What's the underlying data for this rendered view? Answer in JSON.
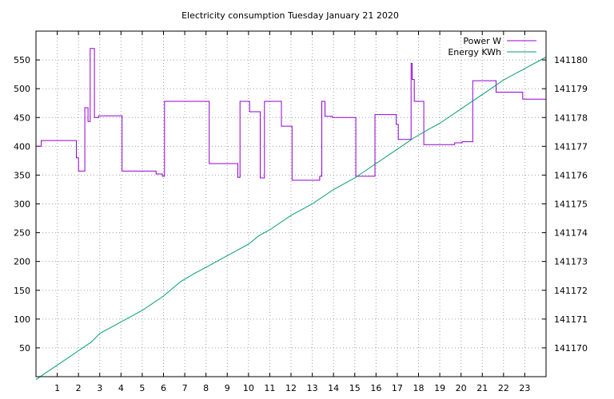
{
  "chart_data": {
    "type": "line",
    "title": "Electricity consumption Tuesday January 21 2020",
    "xlabel": "",
    "ylabel": "",
    "xlim": [
      0,
      24
    ],
    "ylim": [
      0,
      600
    ],
    "y2lim": [
      141169,
      141181
    ],
    "grid": true,
    "legend_placement": "top-right",
    "x_ticks": [
      1,
      2,
      3,
      4,
      5,
      6,
      7,
      8,
      9,
      10,
      11,
      12,
      13,
      14,
      15,
      16,
      17,
      18,
      19,
      20,
      21,
      22,
      23
    ],
    "y_ticks": [
      50,
      100,
      150,
      200,
      250,
      300,
      350,
      400,
      450,
      500,
      550
    ],
    "y2_ticks": [
      141170,
      141171,
      141172,
      141173,
      141174,
      141175,
      141176,
      141177,
      141178,
      141179,
      141180
    ],
    "series": [
      {
        "name": "Power W",
        "color": "#9400d3",
        "axis": "y",
        "step": true,
        "x": [
          0,
          0.25,
          1.6,
          1.9,
          1.95,
          2.0,
          2.3,
          2.35,
          2.45,
          2.55,
          2.6,
          2.75,
          2.95,
          4.05,
          5.65,
          5.95,
          6.05,
          6.8,
          8.15,
          9.5,
          9.55,
          9.6,
          10.05,
          10.55,
          10.75,
          11.55,
          12.05,
          12.15,
          13.35,
          13.45,
          13.6,
          13.95,
          15.05,
          15.95,
          16.95,
          17.05,
          17.65,
          17.7,
          17.8,
          18.25,
          19.7,
          20.05,
          20.55,
          21.65,
          22.9,
          24
        ],
        "y": [
          400,
          410,
          410,
          380,
          380,
          357,
          467,
          467,
          443,
          570,
          570,
          450,
          453,
          357,
          352,
          348,
          478,
          478,
          370,
          346,
          346,
          478,
          460,
          345,
          478,
          435,
          341,
          341,
          348,
          478,
          452,
          450,
          348,
          455,
          438,
          412,
          544,
          516,
          478,
          403,
          406,
          408,
          514,
          494,
          482,
          411
        ]
      },
      {
        "name": "Energy KWh",
        "color": "#009e73",
        "axis": "y2",
        "step": false,
        "x": [
          0,
          1,
          2,
          2.6,
          3,
          4,
          5,
          6,
          6.8,
          7.5,
          8,
          9,
          10,
          10.5,
          11,
          12,
          13,
          14,
          15,
          16,
          17,
          17.8,
          18.5,
          19,
          20,
          21,
          22,
          23,
          24
        ],
        "y": [
          141168.9,
          141169.4,
          141169.9,
          141170.2,
          141170.5,
          141170.9,
          141171.3,
          141171.8,
          141172.3,
          141172.6,
          141172.8,
          141173.2,
          141173.6,
          141173.9,
          141174.1,
          141174.6,
          141175.0,
          141175.5,
          141175.9,
          141176.4,
          141176.9,
          141177.3,
          141177.6,
          141177.8,
          141178.3,
          141178.8,
          141179.3,
          141179.7,
          141180.1
        ]
      }
    ]
  }
}
